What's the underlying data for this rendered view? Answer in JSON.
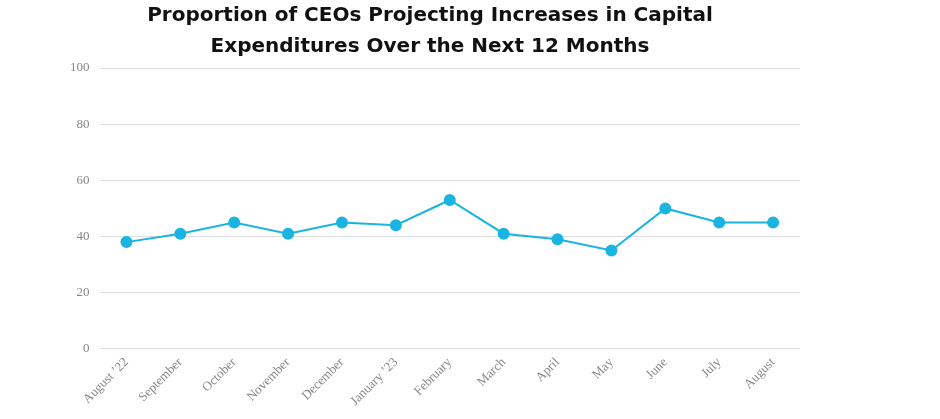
{
  "chart_data": {
    "type": "line",
    "title": "Proportion of CEOs Projecting Increases in Capital Expenditures Over the Next 12 Months",
    "categories": [
      "August ’22",
      "September",
      "October",
      "November",
      "December",
      "January ’23",
      "February",
      "March",
      "April",
      "May",
      "June",
      "July",
      "August"
    ],
    "values": [
      38,
      41,
      45,
      41,
      45,
      44,
      53,
      41,
      39,
      35,
      50,
      45,
      45
    ],
    "color": "#1ab4e0",
    "marker": "circle",
    "ylim": [
      0,
      100
    ],
    "yticks": [
      0,
      20,
      40,
      60,
      80,
      100
    ],
    "grid": true
  }
}
